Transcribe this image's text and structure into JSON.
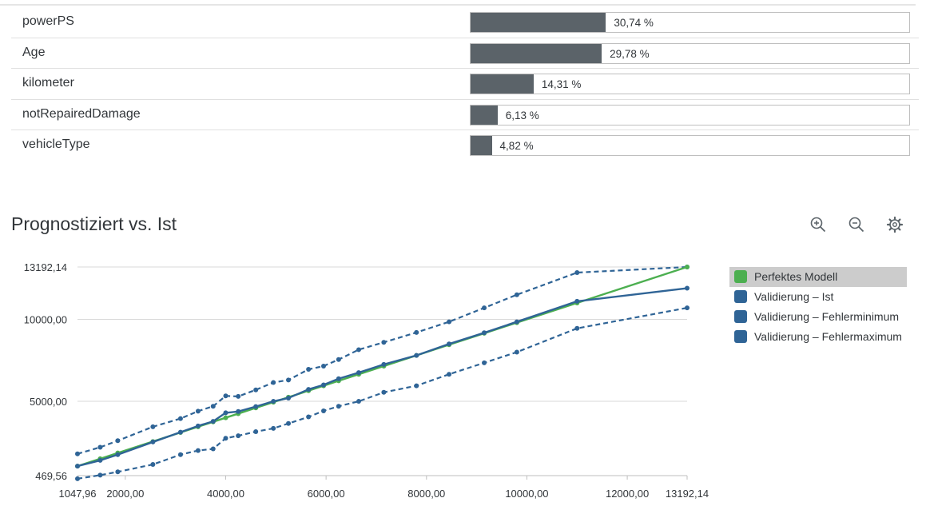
{
  "influencers": [
    {
      "name": "powerPS",
      "value_label": "30,74 %",
      "pct": 30.74
    },
    {
      "name": "Age",
      "value_label": "29,78 %",
      "pct": 29.78
    },
    {
      "name": "kilometer",
      "value_label": "14,31 %",
      "pct": 14.31
    },
    {
      "name": "notRepairedDamage",
      "value_label": "6,13 %",
      "pct": 6.13
    },
    {
      "name": "vehicleType",
      "value_label": "4,82 %",
      "pct": 4.82
    }
  ],
  "toolbar": {
    "icons": [
      "zoom-in-icon",
      "zoom-out-icon",
      "settings-icon"
    ]
  },
  "colors": {
    "bar_fill": "#5b6369",
    "green": "#4caf50",
    "blue": "#2f6496",
    "grid": "#d9d9d9"
  },
  "chart_data": {
    "type": "line",
    "title": "Prognostiziert vs. Ist",
    "xlabel": "",
    "ylabel": "",
    "xlim": [
      1047.96,
      13192.14
    ],
    "ylim": [
      469.56,
      13192.14
    ],
    "x_ticks": [
      1047.96,
      2000,
      4000,
      6000,
      8000,
      10000,
      12000,
      13192.14
    ],
    "x_tick_labels": [
      "1047,96",
      "2000,00",
      "4000,00",
      "6000,00",
      "8000,00",
      "10000,00",
      "12000,00",
      "13192,14"
    ],
    "y_ticks": [
      469.56,
      5000,
      10000,
      13192.14
    ],
    "y_tick_labels": [
      "469,56",
      "5000,00",
      "10000,00",
      "13192,14"
    ],
    "grid": true,
    "legend_position": "right",
    "legend": [
      "Perfektes Modell",
      "Validierung – Ist",
      "Validierung – Fehlerminimum",
      "Validierung – Fehlermaximum"
    ],
    "series": [
      {
        "name": "Perfektes Modell",
        "style": "solid",
        "color": "#4caf50",
        "x": [
          1047.96,
          1500,
          1850,
          2550,
          3100,
          3450,
          3750,
          4000,
          4250,
          4600,
          4950,
          5250,
          5650,
          5950,
          6250,
          6650,
          7150,
          7800,
          8450,
          9150,
          9800,
          11000,
          13192.14
        ],
        "y": [
          1047.96,
          1500,
          1850,
          2550,
          3100,
          3450,
          3750,
          4000,
          4250,
          4600,
          4950,
          5250,
          5650,
          5950,
          6250,
          6650,
          7150,
          7800,
          8450,
          9150,
          9800,
          11000,
          13192.14
        ]
      },
      {
        "name": "Validierung – Ist",
        "style": "solid",
        "color": "#2f6496",
        "x": [
          1047.96,
          1500,
          1850,
          2550,
          3100,
          3450,
          3750,
          4000,
          4250,
          4600,
          4950,
          5250,
          5650,
          5950,
          6250,
          6650,
          7150,
          7800,
          8450,
          9150,
          9800,
          11000,
          13192.14
        ],
        "y": [
          1050,
          1400,
          1750,
          2520,
          3120,
          3500,
          3780,
          4300,
          4380,
          4680,
          5000,
          5200,
          5730,
          6000,
          6380,
          6750,
          7250,
          7800,
          8500,
          9180,
          9850,
          11100,
          11900
        ]
      },
      {
        "name": "Validierung – Fehlerminimum",
        "style": "dashed",
        "color": "#2f6496",
        "x": [
          1047.96,
          1500,
          1850,
          2550,
          3100,
          3450,
          3750,
          4000,
          4250,
          4600,
          4950,
          5250,
          5650,
          5950,
          6250,
          6650,
          7150,
          7800,
          8450,
          9150,
          9800,
          11000,
          13192.14
        ],
        "y": [
          280,
          500,
          700,
          1150,
          1750,
          2000,
          2100,
          2750,
          2900,
          3150,
          3350,
          3650,
          4050,
          4420,
          4700,
          5000,
          5550,
          5950,
          6650,
          7350,
          8000,
          9450,
          10700
        ]
      },
      {
        "name": "Validierung – Fehlermaximum",
        "style": "dashed",
        "color": "#2f6496",
        "x": [
          1047.96,
          1500,
          1850,
          2550,
          3100,
          3450,
          3750,
          4000,
          4250,
          4600,
          4950,
          5250,
          5650,
          5950,
          6250,
          6650,
          7150,
          7800,
          8450,
          9150,
          9800,
          11000,
          13192.14
        ],
        "y": [
          1800,
          2200,
          2600,
          3450,
          3950,
          4400,
          4700,
          5330,
          5300,
          5700,
          6150,
          6300,
          6950,
          7150,
          7550,
          8150,
          8600,
          9200,
          9850,
          10700,
          11500,
          12850,
          13192.14
        ]
      }
    ]
  }
}
